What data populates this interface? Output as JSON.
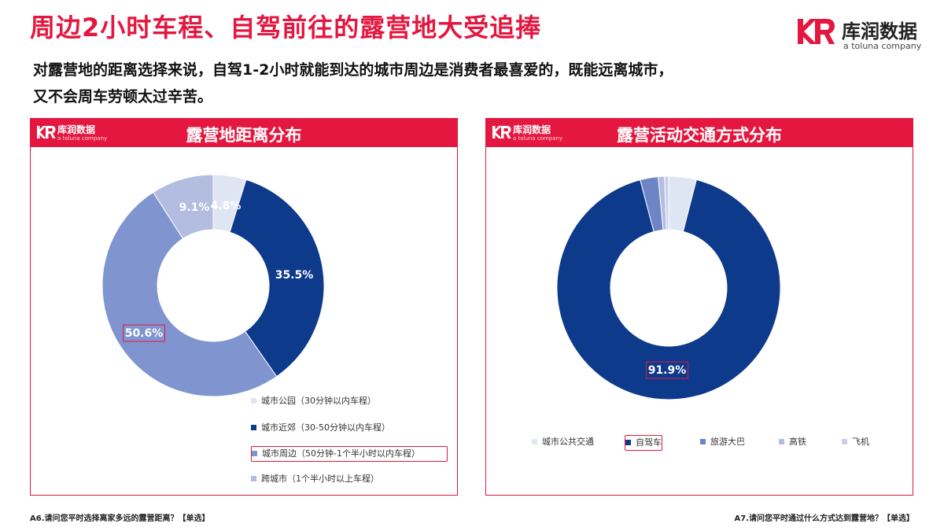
{
  "page": {
    "title": "周边2小时车程、自驾前往的露营地大受追捧",
    "subtitle_line1": "对露营地的距离选择来说，自驾1-2小时就能到达的城市周边是消费者最喜爱的，既能远离城市，",
    "subtitle_line2": "又不会周车劳顿太过辛苦。"
  },
  "brand": {
    "name": "库润数据",
    "sub": "a toluna company",
    "accent": "#e3173f"
  },
  "footnotes": {
    "left": "A6.请问您平时选择离家多远的露营距离？【单选】",
    "right": "A7.请问您平时通过什么方式达到露营地？【单选】"
  },
  "chart_data": [
    {
      "type": "pie",
      "donut": true,
      "title": "露营地距离分布",
      "categories": [
        "城市公园（30分钟以内车程）",
        "城市近郊（30-50分钟以内车程）",
        "城市周边（50分钟-1个半小时以内车程）",
        "跨城市（1个半小时以上车程）"
      ],
      "values": [
        4.8,
        35.5,
        50.6,
        9.1
      ],
      "labels": [
        "4.8%",
        "35.5%",
        "50.6%",
        "9.1%"
      ],
      "colors": [
        "#dfe6f3",
        "#0e3a8c",
        "#8095cf",
        "#b3bde0"
      ],
      "highlight": "城市周边（50分钟-1个半小时以内车程）",
      "legend_position": "bottom-right"
    },
    {
      "type": "pie",
      "donut": true,
      "title": "露营活动交通方式分布",
      "categories": [
        "城市公共交通",
        "自驾车",
        "旅游大巴",
        "高铁",
        "飞机"
      ],
      "values": [
        4.0,
        91.9,
        2.6,
        0.9,
        0.6
      ],
      "labels": [
        "",
        "91.9%",
        "",
        "",
        ""
      ],
      "colors": [
        "#dfe6f3",
        "#0e3a8c",
        "#6d84c6",
        "#b3bde0",
        "#c9d1ea"
      ],
      "highlight": "自驾车",
      "legend_position": "bottom"
    }
  ]
}
